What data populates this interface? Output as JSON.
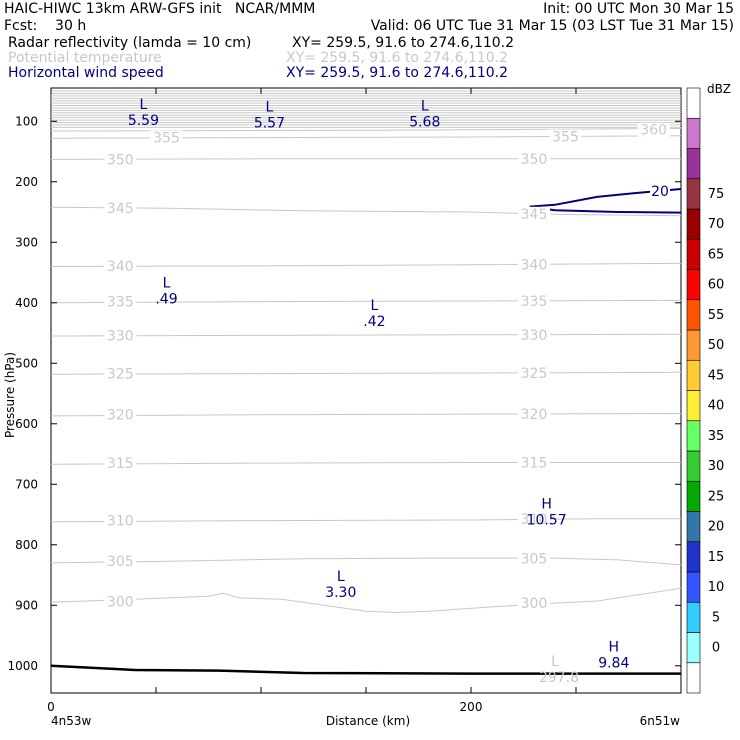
{
  "header": {
    "line1_left": "HAIC-HIWC 13km ARW-GFS init   NCAR/MMM",
    "line1_right": "Init: 00 UTC Mon 30 Mar 15",
    "line2_left": "Fcst:    30 h",
    "line2_right": "Valid: 06 UTC Tue 31 Mar 15 (03 LST Tue 31 Mar 15)",
    "fields": [
      {
        "name": "Radar reflectivity (lamda = 10 cm)",
        "xy": "XY= 259.5, 91.6 to 274.6,110.2",
        "color": "#000000"
      },
      {
        "name": "Potential temperature",
        "xy": "XY= 259.5, 91.6 to 274.6,110.2",
        "color": "#c8c8c8"
      },
      {
        "name": "Horizontal wind speed",
        "xy": "XY= 259.5, 91.6 to 274.6,110.2",
        "color": "#000080"
      }
    ]
  },
  "chart_data": {
    "type": "cross-section",
    "xlabel": "Distance (km)",
    "ylabel": "Pressure (hPa)",
    "x_range": [
      0,
      300
    ],
    "y_range": [
      1045,
      45
    ],
    "x_ticks": [
      0,
      200
    ],
    "y_ticks": [
      100,
      200,
      300,
      400,
      500,
      600,
      700,
      800,
      900,
      1000
    ],
    "x_end_labels": [
      "4n53w",
      "6n51w"
    ],
    "theta_contours": [
      {
        "value": 300,
        "color": "#c8c8c8",
        "points": [
          [
            0,
            895
          ],
          [
            40,
            890
          ],
          [
            75,
            885
          ],
          [
            82,
            880
          ],
          [
            90,
            888
          ],
          [
            110,
            890
          ],
          [
            130,
            900
          ],
          [
            150,
            910
          ],
          [
            165,
            912
          ],
          [
            180,
            910
          ],
          [
            200,
            905
          ],
          [
            230,
            898
          ],
          [
            260,
            893
          ],
          [
            300,
            872
          ]
        ],
        "labels": [
          {
            "x": 33,
            "p": 894,
            "text": "300"
          },
          {
            "x": 230,
            "p": 896,
            "text": "300"
          }
        ]
      },
      {
        "value": 305,
        "color": "#c8c8c8",
        "points": [
          [
            0,
            830
          ],
          [
            60,
            827
          ],
          [
            120,
            823
          ],
          [
            180,
            822
          ],
          [
            240,
            822
          ],
          [
            270,
            825
          ],
          [
            300,
            833
          ]
        ],
        "labels": [
          {
            "x": 33,
            "p": 827,
            "text": "305"
          },
          {
            "x": 230,
            "p": 823,
            "text": "305"
          }
        ]
      },
      {
        "value": 310,
        "color": "#c8c8c8",
        "points": [
          [
            0,
            762
          ],
          [
            100,
            760
          ],
          [
            200,
            759
          ],
          [
            260,
            757
          ],
          [
            300,
            757
          ]
        ],
        "labels": [
          {
            "x": 33,
            "p": 760,
            "text": "310"
          },
          {
            "x": 230,
            "p": 757,
            "text": "310"
          }
        ]
      },
      {
        "value": 315,
        "color": "#c8c8c8",
        "points": [
          [
            0,
            667
          ],
          [
            100,
            665
          ],
          [
            200,
            664
          ],
          [
            300,
            664
          ]
        ],
        "labels": [
          {
            "x": 33,
            "p": 665,
            "text": "315"
          },
          {
            "x": 230,
            "p": 664,
            "text": "315"
          }
        ]
      },
      {
        "value": 320,
        "color": "#c8c8c8",
        "points": [
          [
            0,
            587
          ],
          [
            100,
            585
          ],
          [
            200,
            584
          ],
          [
            300,
            583
          ]
        ],
        "labels": [
          {
            "x": 33,
            "p": 585,
            "text": "320"
          },
          {
            "x": 230,
            "p": 584,
            "text": "320"
          }
        ]
      },
      {
        "value": 325,
        "color": "#c8c8c8",
        "points": [
          [
            0,
            518
          ],
          [
            100,
            517
          ],
          [
            200,
            516
          ],
          [
            300,
            515
          ]
        ],
        "labels": [
          {
            "x": 33,
            "p": 517,
            "text": "325"
          },
          {
            "x": 230,
            "p": 516,
            "text": "325"
          }
        ]
      },
      {
        "value": 330,
        "color": "#c8c8c8",
        "points": [
          [
            0,
            455
          ],
          [
            100,
            454
          ],
          [
            200,
            453
          ],
          [
            300,
            452
          ]
        ],
        "labels": [
          {
            "x": 33,
            "p": 454,
            "text": "330"
          },
          {
            "x": 230,
            "p": 453,
            "text": "330"
          }
        ]
      },
      {
        "value": 335,
        "color": "#c8c8c8",
        "points": [
          [
            0,
            400
          ],
          [
            100,
            398
          ],
          [
            200,
            397
          ],
          [
            300,
            396
          ]
        ],
        "labels": [
          {
            "x": 33,
            "p": 398,
            "text": "335"
          },
          {
            "x": 230,
            "p": 397,
            "text": "335"
          }
        ]
      },
      {
        "value": 340,
        "color": "#c8c8c8",
        "points": [
          [
            0,
            340
          ],
          [
            100,
            339
          ],
          [
            200,
            337
          ],
          [
            300,
            335
          ]
        ],
        "labels": [
          {
            "x": 33,
            "p": 339,
            "text": "340"
          },
          {
            "x": 230,
            "p": 337,
            "text": "340"
          }
        ]
      },
      {
        "value": 345,
        "color": "#c8c8c8",
        "points": [
          [
            0,
            242
          ],
          [
            60,
            244
          ],
          [
            120,
            248
          ],
          [
            200,
            250
          ],
          [
            240,
            254
          ],
          [
            300,
            256
          ]
        ],
        "labels": [
          {
            "x": 33,
            "p": 243,
            "text": "345"
          },
          {
            "x": 230,
            "p": 253,
            "text": "345"
          }
        ]
      },
      {
        "value": 350,
        "color": "#c8c8c8",
        "points": [
          [
            0,
            163
          ],
          [
            100,
            162
          ],
          [
            200,
            162
          ],
          [
            300,
            162
          ]
        ],
        "labels": [
          {
            "x": 33,
            "p": 163,
            "text": "350"
          },
          {
            "x": 230,
            "p": 162,
            "text": "350"
          }
        ]
      },
      {
        "value": 355,
        "color": "#c8c8c8",
        "points": [
          [
            0,
            128
          ],
          [
            100,
            127
          ],
          [
            200,
            126
          ],
          [
            300,
            124
          ]
        ],
        "labels": [
          {
            "x": 55,
            "p": 127,
            "text": "355"
          },
          {
            "x": 245,
            "p": 125,
            "text": "355"
          }
        ]
      },
      {
        "value": 360,
        "color": "#c8c8c8",
        "points": [
          [
            0,
            116
          ],
          [
            150,
            115
          ],
          [
            300,
            112
          ]
        ],
        "labels": [
          {
            "x": 287,
            "p": 114,
            "text": "360"
          }
        ]
      }
    ],
    "stratosphere_lines_p": [
      50,
      54,
      58,
      62,
      66,
      70,
      74,
      78,
      82,
      86,
      90,
      94,
      98,
      102,
      106,
      110
    ],
    "wind_contours": [
      {
        "value": 20,
        "color": "#000080",
        "points": [
          [
            228,
            241
          ],
          [
            240,
            238
          ],
          [
            260,
            225
          ],
          [
            280,
            218
          ],
          [
            300,
            212
          ]
        ],
        "labels": [
          {
            "x": 290,
            "p": 215,
            "text": "20"
          }
        ]
      },
      {
        "value": 20,
        "color": "#000080",
        "points": [
          [
            228,
            241
          ],
          [
            240,
            247
          ],
          [
            270,
            250
          ],
          [
            300,
            251
          ]
        ],
        "labels": []
      }
    ],
    "terrain": [
      [
        0,
        1000
      ],
      [
        40,
        1007
      ],
      [
        80,
        1008
      ],
      [
        120,
        1012
      ],
      [
        200,
        1013
      ],
      [
        300,
        1013
      ]
    ],
    "extrema_wind": [
      {
        "type": "L",
        "value": "5.59",
        "x": 44,
        "p": 80
      },
      {
        "type": "L",
        "value": "5.57",
        "x": 104,
        "p": 84
      },
      {
        "type": "L",
        "value": "5.68",
        "x": 178,
        "p": 82
      },
      {
        "type": "L",
        "value": ".49",
        "x": 55,
        "p": 375
      },
      {
        "type": "L",
        "value": ".42",
        "x": 154,
        "p": 412
      },
      {
        "type": "L",
        "value": "3.30",
        "x": 138,
        "p": 860
      },
      {
        "type": "H",
        "value": "10.57",
        "x": 236,
        "p": 740
      },
      {
        "type": "H",
        "value": "9.84",
        "x": 268,
        "p": 976
      }
    ],
    "extrema_theta": [
      {
        "type": "L",
        "value": "297.8",
        "x": 240,
        "p": 1000
      }
    ],
    "colorbar": {
      "title": "dBZ",
      "levels": [
        0,
        5,
        10,
        15,
        20,
        25,
        30,
        35,
        40,
        45,
        50,
        55,
        60,
        65,
        70,
        75
      ],
      "colors": [
        "#ffffff",
        "#99ffff",
        "#33ccff",
        "#3355ff",
        "#2233cc",
        "#3377aa",
        "#00aa00",
        "#33cc33",
        "#66ff66",
        "#ffee33",
        "#ffcc33",
        "#ff9933",
        "#ff5500",
        "#ff0000",
        "#cc0000",
        "#990000",
        "#993344",
        "#993399",
        "#cc77cc",
        "#ffffff"
      ]
    }
  }
}
